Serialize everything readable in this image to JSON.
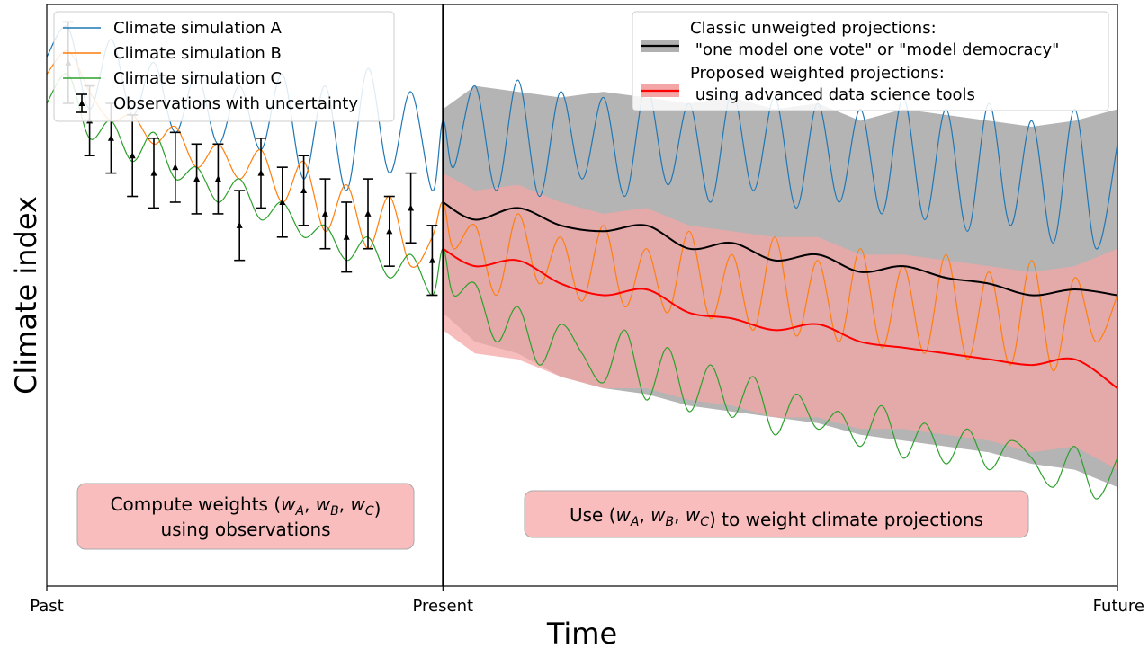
{
  "chart_data": {
    "type": "line",
    "title": "",
    "xlabel": "Time",
    "ylabel": "Climate index",
    "x_ticks": [
      "Past",
      "Present",
      "Future"
    ],
    "xlim": [
      0,
      100
    ],
    "ylim": [
      0,
      100
    ],
    "present_x": 37,
    "grid": false,
    "legend_left": {
      "placement": "top-left",
      "entries": [
        {
          "label": "Climate simulation A",
          "color": "#1f77b4",
          "kind": "line"
        },
        {
          "label": "Climate simulation B",
          "color": "#ff7f0e",
          "kind": "line"
        },
        {
          "label": "Climate simulation C",
          "color": "#2ca02c",
          "kind": "line"
        },
        {
          "label": "Observations with uncertainty",
          "color": "#000000",
          "kind": "errorbar"
        }
      ]
    },
    "legend_right": {
      "placement": "top-right",
      "entries": [
        {
          "line1": "Classic unweigted projections:",
          "line2": " \"one model one vote\" or \"model democracy\"",
          "line_color": "#000000",
          "band_color": "#b0b0b0"
        },
        {
          "line1": "Proposed weighted projections:",
          "line2": " using advanced data science tools",
          "line_color": "#ff0000",
          "band_color": "#f4a6a6"
        }
      ]
    },
    "annotations": [
      {
        "pre": "Compute weights (",
        "vars": [
          "w",
          "A",
          "w",
          "B",
          "w",
          "C"
        ],
        "post": ")",
        "line2": "using observations"
      },
      {
        "pre": "Use (",
        "vars": [
          "w",
          "A",
          "w",
          "B",
          "w",
          "C"
        ],
        "post": ") to weight climate projections",
        "line2": ""
      }
    ],
    "series": [
      {
        "name": "Climate simulation A",
        "color": "#1f77b4",
        "x": [
          0,
          2,
          4,
          6,
          8,
          10,
          12,
          14,
          16,
          18,
          20,
          22,
          24,
          26,
          28,
          30,
          32,
          34,
          36,
          37,
          38,
          40,
          42,
          44,
          46,
          48,
          50,
          52,
          54,
          56,
          58,
          60,
          62,
          64,
          66,
          68,
          70,
          72,
          74,
          76,
          78,
          80,
          82,
          84,
          86,
          88,
          90,
          92,
          94,
          96,
          98,
          100
        ],
        "y": [
          91,
          96,
          82,
          94,
          81,
          90,
          78,
          88,
          76,
          86,
          75,
          88,
          70,
          86,
          68,
          89,
          71,
          85,
          68,
          80,
          72,
          86,
          68,
          87,
          67,
          85,
          70,
          84,
          67,
          86,
          69,
          83,
          66,
          85,
          68,
          84,
          65,
          83,
          66,
          82,
          64,
          84,
          63,
          82,
          61,
          83,
          62,
          80,
          59,
          82,
          58,
          76
        ]
      },
      {
        "name": "Climate simulation B",
        "color": "#ff7f0e",
        "x": [
          0,
          2,
          4,
          6,
          8,
          10,
          12,
          14,
          16,
          18,
          20,
          22,
          24,
          26,
          28,
          30,
          32,
          34,
          36,
          37,
          38,
          40,
          42,
          44,
          46,
          48,
          50,
          52,
          54,
          56,
          58,
          60,
          62,
          64,
          66,
          68,
          70,
          72,
          74,
          76,
          78,
          80,
          82,
          84,
          86,
          88,
          90,
          92,
          94,
          96,
          98,
          100
        ],
        "y": [
          88,
          92,
          85,
          80,
          81,
          76,
          79,
          72,
          76,
          70,
          75,
          66,
          73,
          61,
          69,
          58,
          67,
          55,
          60,
          66,
          58,
          62,
          50,
          64,
          52,
          60,
          49,
          62,
          48,
          58,
          47,
          61,
          46,
          57,
          44,
          60,
          43,
          56,
          42,
          58,
          41,
          55,
          40,
          57,
          39,
          54,
          38,
          56,
          37,
          53,
          42,
          50
        ]
      },
      {
        "name": "Climate simulation C",
        "color": "#2ca02c",
        "x": [
          0,
          2,
          4,
          6,
          8,
          10,
          12,
          14,
          16,
          18,
          20,
          22,
          24,
          26,
          28,
          30,
          32,
          34,
          36,
          37,
          38,
          40,
          42,
          44,
          46,
          48,
          50,
          52,
          54,
          56,
          58,
          60,
          62,
          64,
          66,
          68,
          70,
          72,
          74,
          76,
          78,
          80,
          82,
          84,
          86,
          88,
          90,
          92,
          94,
          96,
          98,
          100
        ],
        "y": [
          83,
          88,
          77,
          80,
          73,
          78,
          70,
          72,
          66,
          70,
          63,
          66,
          60,
          62,
          56,
          60,
          53,
          57,
          50,
          58,
          50,
          52,
          42,
          48,
          38,
          45,
          40,
          35,
          44,
          32,
          41,
          30,
          38,
          29,
          36,
          26,
          33,
          27,
          30,
          24,
          31,
          22,
          28,
          21,
          27,
          20,
          25,
          22,
          17,
          24,
          15,
          22
        ]
      },
      {
        "name": "Classic unweigted projections",
        "color": "#000000",
        "x": [
          37,
          40,
          44,
          48,
          52,
          56,
          60,
          64,
          68,
          72,
          76,
          80,
          84,
          88,
          92,
          96,
          100
        ],
        "y": [
          66,
          63,
          65,
          62,
          61,
          62,
          58,
          59,
          56,
          57,
          54,
          55,
          53,
          52,
          50,
          51,
          50
        ]
      },
      {
        "name": "Proposed weighted projections",
        "color": "#ff0000",
        "x": [
          37,
          40,
          44,
          48,
          52,
          56,
          60,
          64,
          68,
          72,
          76,
          80,
          84,
          88,
          92,
          96,
          100
        ],
        "y": [
          58,
          55,
          56,
          52,
          50,
          51,
          47,
          46,
          44,
          45,
          42,
          41,
          40,
          39,
          38,
          39,
          34
        ]
      }
    ],
    "bands": [
      {
        "name": "Classic unweigted projections",
        "color": "#b0b0b0",
        "x": [
          37,
          40,
          44,
          48,
          52,
          56,
          60,
          64,
          68,
          72,
          76,
          80,
          84,
          88,
          92,
          96,
          100
        ],
        "lower": [
          47,
          42,
          40,
          36,
          34,
          33,
          31,
          30,
          29,
          28,
          26,
          25,
          24,
          23,
          21,
          20,
          17
        ],
        "upper": [
          82,
          86,
          85,
          84,
          85,
          84,
          83,
          84,
          82,
          83,
          80,
          82,
          81,
          80,
          79,
          80,
          82
        ]
      },
      {
        "name": "Proposed weighted projections",
        "color": "#f4a6a6",
        "x": [
          37,
          40,
          44,
          48,
          52,
          56,
          60,
          64,
          68,
          72,
          76,
          80,
          84,
          88,
          92,
          96,
          100
        ],
        "lower": [
          44,
          40,
          39,
          36,
          34,
          34,
          32,
          31,
          29,
          29,
          27,
          27,
          26,
          25,
          23,
          24,
          20
        ],
        "upper": [
          71,
          68,
          69,
          66,
          64,
          65,
          62,
          61,
          60,
          60,
          57,
          57,
          56,
          55,
          54,
          55,
          58
        ]
      }
    ],
    "observations": {
      "color": "#000000",
      "x": [
        2,
        4,
        6,
        8,
        10,
        12,
        14,
        16,
        18,
        20,
        22,
        24,
        26,
        28,
        30,
        32,
        34,
        36
      ],
      "y": [
        90,
        80,
        77,
        74,
        71,
        72,
        70,
        70,
        62,
        71,
        66,
        68,
        64,
        60,
        64,
        61,
        65,
        56
      ],
      "err": [
        7,
        6,
        6,
        7,
        6,
        6,
        6,
        6,
        6,
        6,
        6,
        6,
        6,
        6,
        6,
        6,
        6,
        6
      ]
    }
  }
}
